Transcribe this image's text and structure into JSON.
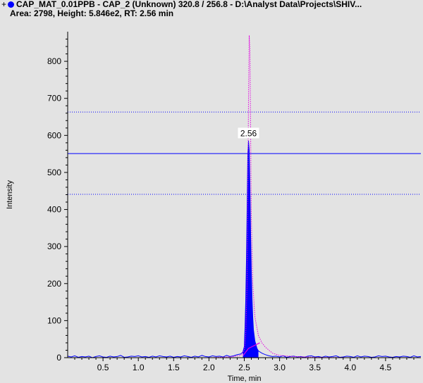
{
  "header": {
    "expand_glyph": "+",
    "series_marker_color": "#0000ff",
    "line1": "CAP_MAT_0.01PPB - CAP_2 (Unknown) 320.8 / 256.8 - D:\\Analyst Data\\Projects\\SHIV...",
    "line2": "Area: 2798, Height: 5.846e2, RT: 2.56 min"
  },
  "chart_data": {
    "type": "line",
    "xlabel": "Time, min",
    "ylabel": "Intensity",
    "xlim": [
      0.0,
      5.0
    ],
    "ylim": [
      0,
      880
    ],
    "x_ticks": [
      0.5,
      1.0,
      1.5,
      2.0,
      2.5,
      3.0,
      3.5,
      4.0,
      4.5
    ],
    "x_tick_labels": [
      "0.5",
      "1.0",
      "1.5",
      "2.0",
      "2.5",
      "3.0",
      "3.5",
      "4.0",
      "4.5"
    ],
    "y_ticks": [
      0,
      100,
      200,
      300,
      400,
      500,
      600,
      700,
      800
    ],
    "y_tick_labels": [
      "0",
      "100",
      "200",
      "300",
      "400",
      "500",
      "600",
      "700",
      "800"
    ],
    "peak_annotation": {
      "label": "2.56",
      "x": 2.56,
      "y": 584.6
    },
    "horizontal_lines": [
      {
        "y": 663,
        "style": "dotted",
        "color": "#0000ff"
      },
      {
        "y": 551,
        "style": "solid",
        "color": "#0000ff"
      },
      {
        "y": 441,
        "style": "dotted",
        "color": "#0000ff"
      }
    ],
    "series": [
      {
        "style": "filled-line",
        "color": "#0000ff",
        "x": [
          0.0,
          0.05,
          0.1,
          0.15,
          0.2,
          0.25,
          0.3,
          0.35,
          0.4,
          0.45,
          0.5,
          0.55,
          0.6,
          0.65,
          0.7,
          0.75,
          0.8,
          0.85,
          0.9,
          0.95,
          1.0,
          1.05,
          1.1,
          1.15,
          1.2,
          1.25,
          1.3,
          1.35,
          1.4,
          1.45,
          1.5,
          1.55,
          1.6,
          1.65,
          1.7,
          1.75,
          1.8,
          1.85,
          1.9,
          1.95,
          2.0,
          2.05,
          2.1,
          2.15,
          2.2,
          2.25,
          2.3,
          2.35,
          2.4,
          2.45,
          2.48,
          2.5,
          2.51,
          2.52,
          2.53,
          2.54,
          2.55,
          2.56,
          2.57,
          2.58,
          2.59,
          2.6,
          2.61,
          2.62,
          2.63,
          2.65,
          2.68,
          2.7,
          2.75,
          2.8,
          2.85,
          2.9,
          2.95,
          3.0,
          3.05,
          3.1,
          3.15,
          3.2,
          3.25,
          3.3,
          3.35,
          3.4,
          3.45,
          3.5,
          3.55,
          3.6,
          3.65,
          3.7,
          3.75,
          3.8,
          3.85,
          3.9,
          3.95,
          4.0,
          4.05,
          4.1,
          4.15,
          4.2,
          4.25,
          4.3,
          4.35,
          4.4,
          4.45,
          4.5,
          4.55,
          4.6,
          4.65,
          4.7,
          4.75,
          4.8,
          4.85,
          4.9,
          4.95,
          5.0
        ],
        "y": [
          4,
          2,
          5,
          1,
          3,
          2,
          4,
          0,
          3,
          5,
          2,
          1,
          4,
          2,
          3,
          6,
          1,
          2,
          4,
          3,
          5,
          2,
          3,
          1,
          4,
          2,
          5,
          3,
          2,
          4,
          1,
          3,
          2,
          5,
          3,
          1,
          4,
          2,
          6,
          3,
          2,
          5,
          3,
          4,
          2,
          6,
          3,
          5,
          8,
          10,
          15,
          30,
          80,
          150,
          260,
          400,
          550,
          585,
          560,
          460,
          330,
          230,
          160,
          110,
          75,
          45,
          25,
          18,
          12,
          8,
          5,
          3,
          4,
          2,
          5,
          1,
          3,
          4,
          2,
          3,
          1,
          4,
          5,
          2,
          3,
          1,
          4,
          2,
          3,
          5,
          1,
          2,
          4,
          3,
          1,
          5,
          2,
          4,
          3,
          1,
          2,
          5,
          3,
          4,
          2,
          1,
          3,
          2,
          4,
          3,
          1,
          5,
          2,
          3
        ]
      },
      {
        "style": "dotted",
        "color": "#e000e0",
        "x": [
          0.0,
          0.5,
          1.0,
          1.5,
          2.0,
          2.3,
          2.45,
          2.5,
          2.52,
          2.54,
          2.55,
          2.56,
          2.57,
          2.58,
          2.59,
          2.6,
          2.62,
          2.65,
          2.7,
          2.75,
          2.8,
          2.9,
          3.0,
          3.2,
          3.5,
          4.0,
          4.5,
          5.0
        ],
        "y": [
          0,
          0,
          0,
          0,
          0,
          2,
          6,
          20,
          60,
          200,
          420,
          700,
          870,
          830,
          600,
          380,
          200,
          110,
          60,
          40,
          28,
          12,
          6,
          3,
          1,
          0,
          0,
          0
        ]
      },
      {
        "style": "baseline",
        "color": "#e000e0",
        "x": [
          2.48,
          2.56,
          2.72
        ],
        "y": [
          5,
          25,
          40
        ]
      }
    ]
  }
}
